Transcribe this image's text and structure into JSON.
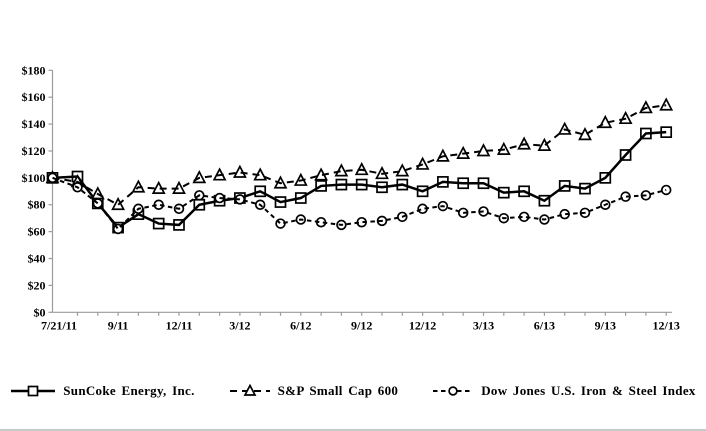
{
  "colors": {
    "line": "#000000",
    "axis": "#9b9b9b",
    "background": "#ffffff"
  },
  "chart_data": {
    "type": "line",
    "title": "",
    "xlabel": "",
    "ylabel": "",
    "grid": false,
    "legend_position": "bottom",
    "y_axis": {
      "min": 0,
      "max": 180,
      "step": 20,
      "prefix": "$",
      "ticks": [
        0,
        20,
        40,
        60,
        80,
        100,
        120,
        140,
        160,
        180
      ]
    },
    "x": [
      "7/21/11",
      "7/11",
      "8/11",
      "9/11",
      "10/11",
      "11/11",
      "12/11",
      "1/12",
      "2/12",
      "3/12",
      "4/12",
      "5/12",
      "6/12",
      "7/12",
      "8/12",
      "9/12",
      "10/12",
      "11/12",
      "12/12",
      "1/13",
      "2/13",
      "3/13",
      "4/13",
      "5/13",
      "6/13",
      "7/13",
      "8/13",
      "9/13",
      "10/13",
      "11/13",
      "12/13"
    ],
    "x_shown_indices": [
      0,
      3,
      6,
      9,
      12,
      15,
      18,
      21,
      24,
      27,
      30
    ],
    "x_shown_labels": [
      "7/21/11",
      "9/11",
      "12/11",
      "3/12",
      "6/12",
      "9/12",
      "12/12",
      "3/13",
      "6/13",
      "9/13",
      "12/13"
    ],
    "series": [
      {
        "id": "suncoke",
        "name": "SunCoke Energy, Inc.",
        "marker": "square",
        "line": "solid",
        "dash": "",
        "width": 2.5,
        "values": [
          100,
          101,
          81,
          63,
          73,
          66,
          65,
          80,
          83,
          85,
          90,
          82,
          85,
          94,
          95,
          95,
          93,
          95,
          90,
          97,
          96,
          96,
          89,
          90,
          83,
          94,
          92,
          100,
          117,
          133,
          134
        ]
      },
      {
        "id": "sp-small-cap-600",
        "name": "S&P Small Cap 600",
        "marker": "triangle",
        "line": "dashed",
        "dash": "7,5",
        "width": 2,
        "values": [
          100,
          97,
          88,
          80,
          93,
          92,
          92,
          100,
          102,
          104,
          102,
          96,
          98,
          102,
          105,
          106,
          103,
          105,
          110,
          116,
          118,
          120,
          121,
          125,
          124,
          136,
          132,
          141,
          144,
          152,
          154
        ]
      },
      {
        "id": "dj-us-iron-steel",
        "name": "Dow Jones U.S. Iron & Steel Index",
        "marker": "circle",
        "line": "dashed",
        "dash": "4.5,3.5",
        "width": 2,
        "values": [
          100,
          93,
          81,
          62,
          77,
          80,
          77,
          87,
          85,
          84,
          80,
          66,
          69,
          67,
          65,
          67,
          68,
          71,
          77,
          79,
          74,
          75,
          70,
          71,
          69,
          73,
          74,
          80,
          86,
          87,
          91
        ]
      }
    ]
  }
}
